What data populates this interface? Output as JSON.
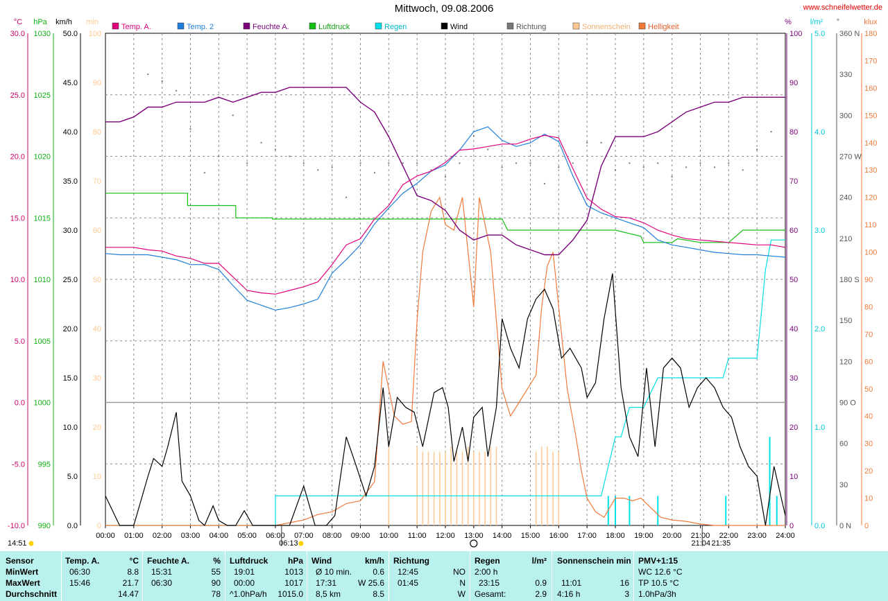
{
  "title": "Mittwoch, 09.08.2006",
  "website": "www.schneifelwetter.de",
  "colors": {
    "temp_a": "#e0007a",
    "temp2": "#1e7fdc",
    "feuchte": "#7a007a",
    "luftdruck": "#11c011",
    "regen": "#00e0e8",
    "wind": "#000000",
    "richtung": "#777777",
    "sonnenschein": "#ffc890",
    "helligkeit": "#f07a3a",
    "rain_axis": "#00c8d8"
  },
  "axes": {
    "temp": {
      "unit": "°C",
      "ticks": [
        "30.0",
        "25.0",
        "20.0",
        "15.0",
        "10.0",
        "5.0",
        "0.0",
        "-5.0",
        "-10.0"
      ]
    },
    "pressure": {
      "unit": "hPa",
      "ticks": [
        "1030",
        "1025",
        "1020",
        "1015",
        "1010",
        "1005",
        "1000",
        "995",
        "990"
      ]
    },
    "wind": {
      "unit": "km/h",
      "ticks": [
        "50.0",
        "45.0",
        "40.0",
        "35.0",
        "30.0",
        "25.0",
        "20.0",
        "15.0",
        "10.0",
        "5.0",
        "0.0"
      ]
    },
    "sun_min": {
      "unit": "min",
      "ticks": [
        "100",
        "90",
        "80",
        "70",
        "60",
        "50",
        "40",
        "30",
        "20",
        "10",
        "0"
      ]
    },
    "humidity": {
      "unit": "%",
      "ticks": [
        "100",
        "90",
        "80",
        "70",
        "60",
        "50",
        "40",
        "30",
        "20",
        "10",
        "0"
      ]
    },
    "rain": {
      "unit": "l/m²",
      "ticks": [
        "5.0",
        "4.0",
        "3.0",
        "2.0",
        "1.0",
        "0.0"
      ]
    },
    "direction": {
      "unit": "°",
      "ticks": [
        "360 N",
        "330",
        "300",
        "270 W",
        "240",
        "210",
        "180 S",
        "150",
        "120",
        "90 O",
        "60",
        "30",
        "0 N"
      ]
    },
    "lux": {
      "unit": "klux",
      "ticks": [
        "180",
        "170",
        "160",
        "150",
        "140",
        "130",
        "120",
        "110",
        "100",
        "90",
        "80",
        "70",
        "60",
        "50",
        "40",
        "30",
        "20",
        "10",
        "0"
      ]
    },
    "time_ticks": [
      "00:00",
      "01:00",
      "02:00",
      "03:00",
      "04:00",
      "05:00",
      "06:00",
      "07:00",
      "08:00",
      "09:00",
      "10:00",
      "11:00",
      "12:00",
      "13:00",
      "14:00",
      "15:00",
      "16:00",
      "17:00",
      "18:00",
      "19:00",
      "20:00",
      "21:00",
      "22:00",
      "23:00",
      "24:00"
    ]
  },
  "legend": [
    "Temp. A.",
    "Temp. 2",
    "Feuchte A.",
    "Luftdruck",
    "Regen",
    "Wind",
    "Richtung",
    "Sonnenschein",
    "Helligkeit"
  ],
  "events": {
    "sunrise": "06:13",
    "sunset": "21:04",
    "moonrise": "14:51",
    "moonset": "21:35"
  },
  "chart_data": {
    "type": "line",
    "title": "Mittwoch, 09.08.2006",
    "x_unit": "hours",
    "x_range": [
      0,
      24
    ],
    "series": [
      {
        "name": "Temp. A.",
        "unit": "°C",
        "x": [
          0,
          0.5,
          1,
          1.5,
          2,
          2.5,
          3,
          3.5,
          4,
          4.5,
          5,
          5.5,
          6,
          6.5,
          7,
          7.5,
          8,
          8.5,
          9,
          9.5,
          10,
          10.5,
          11,
          11.5,
          12,
          12.5,
          13,
          13.5,
          14,
          14.5,
          15,
          15.5,
          16,
          16.5,
          17,
          17.5,
          18,
          18.5,
          19,
          19.5,
          20,
          20.5,
          21,
          21.5,
          22,
          22.5,
          23,
          23.5,
          24
        ],
        "y": [
          12.6,
          12.6,
          12.6,
          12.4,
          12.3,
          11.9,
          11.7,
          11.3,
          11.3,
          10.2,
          9.1,
          8.9,
          8.8,
          9.1,
          9.4,
          9.8,
          11.2,
          12.8,
          13.3,
          14.9,
          16.0,
          17.7,
          18.4,
          18.8,
          19.5,
          20.5,
          20.6,
          20.8,
          21.0,
          21.0,
          21.4,
          21.7,
          21.5,
          19.0,
          16.6,
          15.7,
          15.1,
          15.0,
          14.6,
          14.0,
          13.6,
          13.3,
          13.2,
          13.1,
          13.0,
          12.9,
          12.8,
          12.8,
          12.6
        ]
      },
      {
        "name": "Temp. 2",
        "unit": "°C",
        "x": [
          0,
          0.5,
          1,
          1.5,
          2,
          2.5,
          3,
          3.5,
          4,
          4.5,
          5,
          5.5,
          6,
          6.5,
          7,
          7.5,
          8,
          8.5,
          9,
          9.5,
          10,
          10.5,
          11,
          11.5,
          12,
          12.5,
          13,
          13.5,
          14,
          14.5,
          15,
          15.5,
          16,
          16.5,
          17,
          17.5,
          18,
          18.5,
          19,
          19.5,
          20,
          20.5,
          21,
          21.5,
          22,
          22.5,
          23,
          23.5,
          24
        ],
        "y": [
          12.1,
          12.0,
          12.0,
          12.0,
          11.8,
          11.6,
          11.2,
          11.2,
          10.8,
          9.5,
          8.3,
          7.9,
          7.5,
          7.7,
          8.0,
          8.4,
          10.5,
          11.6,
          12.8,
          14.5,
          15.8,
          17.0,
          17.8,
          18.8,
          19.3,
          20.5,
          22.0,
          22.4,
          21.3,
          20.8,
          21.1,
          21.8,
          21.2,
          18.4,
          16.0,
          15.4,
          15.0,
          14.6,
          14.2,
          13.2,
          12.8,
          12.6,
          12.4,
          12.2,
          12.1,
          12.0,
          12.0,
          11.9,
          11.8
        ]
      },
      {
        "name": "Feuchte A.",
        "unit": "%",
        "x": [
          0,
          0.5,
          1,
          1.5,
          2,
          2.5,
          3,
          3.5,
          4,
          4.5,
          5,
          5.5,
          6,
          6.5,
          7,
          7.5,
          8,
          8.5,
          9,
          9.5,
          10,
          10.5,
          11,
          11.5,
          12,
          12.5,
          13,
          13.5,
          14,
          14.5,
          15,
          15.5,
          16,
          16.5,
          17,
          17.5,
          18,
          18.5,
          19,
          19.5,
          20,
          20.5,
          21,
          21.5,
          22,
          22.5,
          23,
          23.5,
          24
        ],
        "y": [
          82,
          82,
          83,
          85,
          85,
          86,
          86,
          86,
          87,
          86,
          87,
          88,
          88,
          89,
          89,
          89,
          89,
          89,
          86,
          84,
          79,
          73,
          67,
          66,
          64,
          60,
          58,
          59,
          59,
          57,
          56,
          55,
          55,
          58,
          62,
          73,
          79,
          79,
          79,
          80,
          82,
          84,
          85,
          86,
          86,
          87,
          87,
          87,
          87
        ]
      },
      {
        "name": "Luftdruck",
        "unit": "hPa",
        "x": [
          0,
          2.9,
          2.9,
          4.6,
          4.6,
          5.9,
          5.9,
          7.0,
          8.0,
          9.0,
          10.0,
          11.0,
          12.0,
          13.0,
          13.5,
          14.0,
          14.2,
          14.5,
          15.0,
          16.0,
          17.0,
          18.0,
          18.9,
          19.0,
          20.0,
          20.2,
          21.0,
          21.5,
          22.0,
          22.5,
          23.0,
          24.0
        ],
        "y": [
          1017,
          1017,
          1016,
          1016,
          1015,
          1015,
          1014.9,
          1014.9,
          1014.9,
          1014.9,
          1014.9,
          1014.9,
          1014.9,
          1014.9,
          1014.9,
          1014.9,
          1014.0,
          1014.0,
          1014.0,
          1014.0,
          1014.0,
          1014.0,
          1013.5,
          1013.0,
          1013.0,
          1013.3,
          1013.0,
          1013.0,
          1013.0,
          1014.0,
          1014.0,
          1014.0
        ]
      },
      {
        "name": "Regen",
        "unit": "l/m²",
        "x": [
          0,
          6.0,
          6.0,
          17.5,
          18.0,
          18.2,
          18.5,
          18.8,
          19.0,
          19.5,
          21.0,
          21.8,
          22.0,
          22.5,
          23.0,
          23.3,
          23.5,
          24.0
        ],
        "y": [
          0,
          0,
          0.3,
          0.3,
          0.9,
          0.9,
          1.2,
          1.2,
          1.2,
          1.5,
          1.5,
          1.5,
          1.7,
          1.7,
          1.7,
          2.6,
          2.9,
          2.9
        ]
      },
      {
        "name": "Wind",
        "unit": "km/h",
        "x": [
          0,
          0.5,
          1,
          1.5,
          1.7,
          2.0,
          2.2,
          2.5,
          2.7,
          3.0,
          3.3,
          3.5,
          3.8,
          4.0,
          4.3,
          4.6,
          4.9,
          5.2,
          5.5,
          6.0,
          6.5,
          7.0,
          7.4,
          7.8,
          8.1,
          8.5,
          8.8,
          9.2,
          9.5,
          9.8,
          10.0,
          10.3,
          10.6,
          10.9,
          11.2,
          11.6,
          11.9,
          12.1,
          12.3,
          12.6,
          12.8,
          13.0,
          13.3,
          13.5,
          13.8,
          14.0,
          14.3,
          14.6,
          14.9,
          15.2,
          15.5,
          15.8,
          16.1,
          16.4,
          16.8,
          17.0,
          17.3,
          17.6,
          17.9,
          18.2,
          18.5,
          18.8,
          19.1,
          19.4,
          19.7,
          20.0,
          20.3,
          20.6,
          20.9,
          21.2,
          21.5,
          21.8,
          22.1,
          22.4,
          22.7,
          23.0,
          23.3,
          23.6,
          24.0
        ],
        "y": [
          3.0,
          0,
          0,
          5.0,
          6.8,
          6.0,
          8.0,
          11.5,
          4.5,
          3.0,
          0.5,
          0,
          2.0,
          0.5,
          0,
          0,
          1.5,
          0,
          0,
          0,
          0,
          4.0,
          0,
          0,
          1.0,
          9.0,
          6.5,
          3.0,
          6.0,
          14.0,
          8.0,
          13.0,
          12.0,
          11.5,
          8.0,
          13.5,
          14.0,
          12.0,
          6.5,
          10.0,
          6.5,
          11.0,
          12.0,
          7.0,
          12.0,
          21.0,
          18.0,
          16.0,
          21.0,
          23.0,
          24.0,
          22.0,
          17.0,
          18.0,
          16.0,
          13.0,
          14.5,
          21.0,
          25.6,
          14.0,
          9.0,
          7.0,
          16.0,
          8.0,
          16.0,
          17.0,
          16.0,
          12.0,
          14.0,
          15.0,
          14.0,
          12.0,
          11.0,
          8.0,
          6.0,
          5.0,
          0,
          6.0,
          1.0
        ]
      },
      {
        "name": "Helligkeit",
        "unit": "klux",
        "x": [
          0,
          6.0,
          6.5,
          7.0,
          7.5,
          8.0,
          8.5,
          9.0,
          9.5,
          9.8,
          10.0,
          10.2,
          10.5,
          10.8,
          11.0,
          11.2,
          11.5,
          11.8,
          12.0,
          12.3,
          12.6,
          12.8,
          13.0,
          13.2,
          13.4,
          13.6,
          13.8,
          14.0,
          14.3,
          14.6,
          14.9,
          15.2,
          15.4,
          15.6,
          15.8,
          16.0,
          16.3,
          16.6,
          16.8,
          17.0,
          17.3,
          17.6,
          18.0,
          18.3,
          18.6,
          18.9,
          19.2,
          19.6,
          20.0,
          20.5,
          21.0,
          21.5,
          22.0,
          24.0
        ],
        "y": [
          0,
          0,
          1,
          2,
          4,
          5,
          8,
          9,
          16,
          60,
          50,
          40,
          37,
          38,
          75,
          100,
          115,
          120,
          110,
          108,
          120,
          100,
          80,
          120,
          110,
          100,
          75,
          50,
          40,
          45,
          50,
          55,
          80,
          95,
          100,
          80,
          50,
          33,
          20,
          10,
          5,
          3,
          10,
          10,
          9,
          10,
          7,
          3,
          2,
          1.5,
          0.5,
          0,
          0,
          0
        ]
      },
      {
        "name": "Sonnenschein",
        "unit": "min",
        "bars_x": [
          10.0,
          11.0,
          11.2,
          11.4,
          11.6,
          11.8,
          12.0,
          12.2,
          12.4,
          12.6,
          12.8,
          13.0,
          13.2,
          13.4,
          13.6,
          13.8,
          15.2,
          15.4,
          15.6,
          15.8,
          16.0
        ],
        "bars_y": [
          16,
          16,
          15,
          15,
          15,
          15,
          15,
          16,
          15,
          15,
          16,
          15,
          15,
          15,
          16,
          16,
          15,
          16,
          16,
          15,
          15
        ]
      },
      {
        "name": "Richtung",
        "unit": "°",
        "x": [
          1.5,
          2.0,
          2.5,
          3.0,
          3.5,
          4.0,
          4.5,
          5.0,
          5.5,
          6.0,
          6.5,
          7.0,
          7.5,
          8.0,
          8.5,
          9.0,
          9.5,
          10.0,
          10.5,
          11.0,
          11.5,
          12.0,
          12.5,
          13.0,
          13.5,
          14.0,
          14.5,
          15.0,
          15.5,
          16.0,
          16.5,
          17.0,
          17.5,
          18.0,
          18.5,
          19.0,
          19.5,
          20.0,
          20.5,
          21.0,
          21.5,
          22.0,
          22.5,
          23.0,
          23.5
        ],
        "y": [
          330,
          325,
          318,
          290,
          258,
          270,
          300,
          265,
          280,
          275,
          270,
          265,
          260,
          262,
          240,
          265,
          258,
          265,
          265,
          265,
          260,
          255,
          265,
          285,
          275,
          262,
          265,
          265,
          250,
          262,
          265,
          280,
          280,
          260,
          265,
          262,
          265,
          255,
          262,
          265,
          262,
          265,
          260,
          275,
          288
        ]
      }
    ]
  },
  "stats": {
    "sensor": {
      "header": "Sensor",
      "rows": [
        "MinWert",
        "MaxWert",
        "Durchschnitt"
      ]
    },
    "temp": {
      "header": "Temp. A.",
      "unit": "°C",
      "rows": [
        [
          "06:30",
          "8.8"
        ],
        [
          "15:46",
          "21.7"
        ],
        [
          "",
          "14.47"
        ]
      ]
    },
    "feuchte": {
      "header": "Feuchte A.",
      "unit": "%",
      "rows": [
        [
          "15:31",
          "55"
        ],
        [
          "06:30",
          "90"
        ],
        [
          "",
          "78"
        ]
      ]
    },
    "luftdruck": {
      "header": "Luftdruck",
      "unit": "hPa",
      "rows": [
        [
          "19:01",
          "1013"
        ],
        [
          "00:00",
          "1017"
        ],
        [
          "^1.0hPa/h",
          "1015.0"
        ]
      ]
    },
    "wind": {
      "header": "Wind",
      "unit": "km/h",
      "rows": [
        [
          "Ø 10 min.",
          "0.6"
        ],
        [
          "17:31",
          "W 25.6"
        ],
        [
          "8,5 km",
          "8.5"
        ]
      ]
    },
    "richtung": {
      "header": "Richtung",
      "rows": [
        [
          "12:45",
          "NO"
        ],
        [
          "01:45",
          "N"
        ],
        [
          "",
          "W"
        ]
      ]
    },
    "regen": {
      "header": "Regen",
      "unit": "l/m²",
      "rows": [
        [
          "2:00 h",
          ""
        ],
        [
          "23:15",
          "0.9"
        ],
        [
          "Gesamt:",
          "2.9"
        ]
      ]
    },
    "sonne": {
      "header": "Sonnenschein min",
      "rows": [
        [
          "",
          ""
        ],
        [
          "11:01",
          "16"
        ],
        [
          "4:16 h",
          "3"
        ]
      ]
    },
    "pmv": {
      "header": "PMV+1:15",
      "rows": [
        "WC 12.6 °C",
        "TP 10.5 °C",
        "1.0hPa/3h"
      ]
    }
  }
}
